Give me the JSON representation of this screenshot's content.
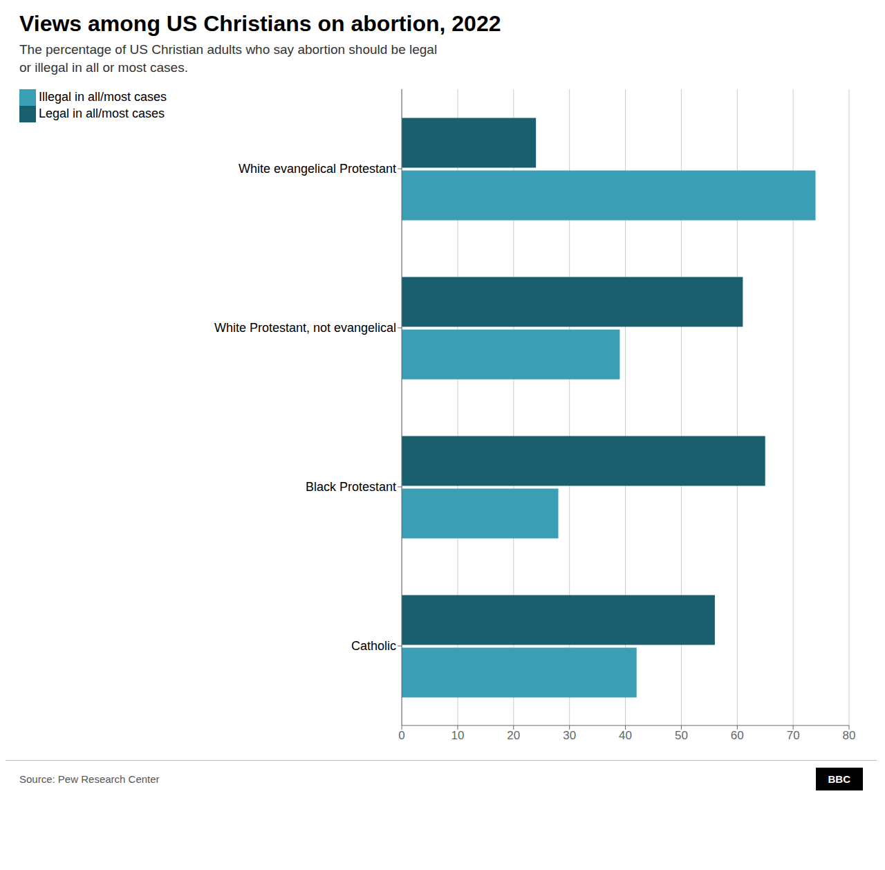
{
  "chart_data": {
    "type": "bar",
    "orientation": "horizontal",
    "title": "Views among US Christians on abortion, 2022",
    "subtitle": "The percentage of US Christian adults who say abortion should be legal\nor illegal in all or most cases.",
    "categories": [
      "White evangelical Protestant",
      "White Protestant, not evangelical",
      "Black Protestant",
      "Catholic"
    ],
    "series": [
      {
        "name": "Legal in all/most cases",
        "color": "#1a5f6e",
        "values": [
          24,
          61,
          65,
          56
        ]
      },
      {
        "name": "Illegal in all/most cases",
        "color": "#3a9eb5",
        "values": [
          74,
          39,
          28,
          42
        ]
      }
    ],
    "xlim": [
      0,
      80
    ],
    "xticks": [
      0,
      10,
      20,
      30,
      40,
      50,
      60,
      70,
      80
    ],
    "grid": true,
    "legend": "upper left",
    "annotations": [
      "Source: Pew Research Center",
      "BBC"
    ]
  }
}
